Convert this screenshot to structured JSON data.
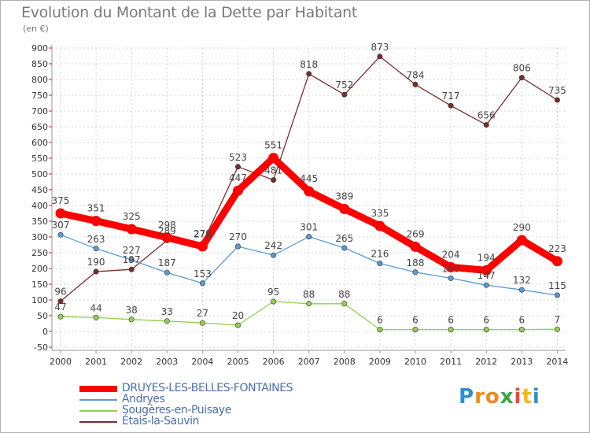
{
  "title": "Evolution du Montant de la Dette par Habitant",
  "unit_label": "(en €)",
  "logo": {
    "letters": [
      "P",
      "r",
      "o",
      "x",
      "i",
      "t",
      "i"
    ],
    "colors": [
      "#2f8fd0",
      "#f08a1c",
      "#f08a1c",
      "#3aa845",
      "#e64a3c",
      "#f0b81c",
      "#2f8fd0"
    ]
  },
  "chart_data": {
    "type": "line",
    "x": [
      "2000",
      "2001",
      "2002",
      "2003",
      "2004",
      "2005",
      "2006",
      "2007",
      "2008",
      "2009",
      "2010",
      "2011",
      "2012",
      "2013",
      "2014"
    ],
    "ylim": [
      -50,
      900
    ],
    "yticks": [
      -50,
      0,
      50,
      100,
      150,
      200,
      250,
      300,
      350,
      400,
      450,
      500,
      550,
      600,
      650,
      700,
      750,
      800,
      850,
      900
    ],
    "grid": true,
    "legend_position": "bottom-left",
    "series": [
      {
        "name": "DRUYES-LES-BELLES-FONTAINES",
        "color": "#ff0000",
        "values": [
          375,
          351,
          325,
          298,
          270,
          447,
          551,
          445,
          389,
          335,
          269,
          204,
          194,
          290,
          223
        ]
      },
      {
        "name": "Andryes",
        "color": "#5b9bd5",
        "values": [
          307,
          263,
          227,
          187,
          153,
          270,
          242,
          301,
          265,
          216,
          188,
          169,
          147,
          132,
          115
        ]
      },
      {
        "name": "Sougères-en-Puisaye",
        "color": "#92d050",
        "values": [
          47,
          44,
          38,
          33,
          27,
          20,
          95,
          88,
          88,
          6,
          6,
          6,
          6,
          6,
          7
        ]
      },
      {
        "name": "Étais-la-Sauvin",
        "color": "#7b2c2c",
        "values": [
          96,
          190,
          197,
          289,
          279,
          523,
          481,
          818,
          752,
          873,
          784,
          717,
          656,
          806,
          735
        ]
      }
    ],
    "data_labels": [
      [
        375,
        351,
        325,
        298,
        270,
        447,
        551,
        445,
        389,
        335,
        269,
        204,
        194,
        290,
        223
      ],
      [
        307,
        263,
        227,
        187,
        153,
        270,
        242,
        301,
        265,
        216,
        188,
        169,
        147,
        132,
        115
      ],
      [
        47,
        44,
        38,
        33,
        27,
        20,
        95,
        88,
        88,
        6,
        6,
        6,
        6,
        6,
        7
      ],
      [
        96,
        190,
        197,
        289,
        279,
        523,
        481,
        818,
        752,
        873,
        784,
        717,
        656,
        806,
        735
      ]
    ]
  }
}
